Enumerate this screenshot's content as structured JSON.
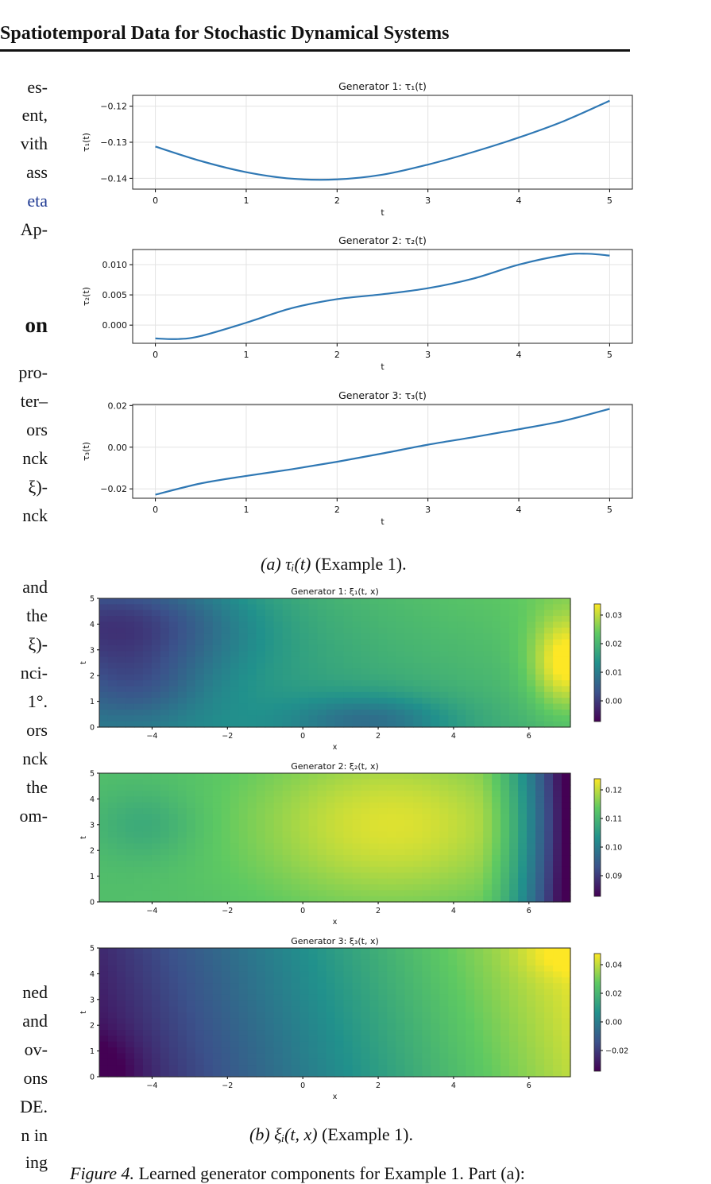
{
  "header": {
    "title": "Spatiotemporal Data for Stochastic Dynamical Systems"
  },
  "left_column": {
    "fragments": [
      "es-",
      "ent,",
      "vith",
      "ass",
      "eta",
      "Ap-",
      "on",
      "pro-",
      "ter–",
      "ors",
      "nck",
      "ξ)-",
      "nck",
      "and",
      "the",
      "ξ)-",
      "nci-",
      "1°.",
      "ors",
      "nck",
      "the",
      "om-",
      "ned",
      "and",
      "ov-",
      "ons",
      "DE.",
      "n in",
      "ing"
    ]
  },
  "tau_plots": [
    {
      "title": "Generator 1: τ₁(t)",
      "ylabel": "τ₁(t)",
      "xlabel": "t",
      "xticks": [
        "0",
        "1",
        "2",
        "3",
        "4",
        "5"
      ],
      "yticks": [
        "−0.12",
        "−0.13",
        "−0.14"
      ],
      "ytick_values": [
        -0.12,
        -0.13,
        -0.14
      ],
      "ylim": [
        -0.143,
        -0.117
      ],
      "x": [
        0,
        0.5,
        1,
        1.5,
        2,
        2.5,
        3,
        3.5,
        4,
        4.5,
        5
      ],
      "y": [
        -0.1312,
        -0.1352,
        -0.1383,
        -0.1401,
        -0.1403,
        -0.139,
        -0.1362,
        -0.1327,
        -0.1287,
        -0.1241,
        -0.1185
      ]
    },
    {
      "title": "Generator 2: τ₂(t)",
      "ylabel": "τ₂(t)",
      "xlabel": "t",
      "xticks": [
        "0",
        "1",
        "2",
        "3",
        "4",
        "5"
      ],
      "yticks": [
        "0.010",
        "0.005",
        "0.000"
      ],
      "ytick_values": [
        0.01,
        0.005,
        0.0
      ],
      "ylim": [
        -0.003,
        0.0125
      ],
      "x": [
        0,
        0.25,
        0.5,
        1,
        1.5,
        2,
        2.5,
        3,
        3.5,
        4,
        4.5,
        4.75,
        5
      ],
      "y": [
        -0.0022,
        -0.0023,
        -0.0018,
        0.0004,
        0.0028,
        0.0043,
        0.0051,
        0.0061,
        0.0077,
        0.01,
        0.0116,
        0.0118,
        0.0115
      ]
    },
    {
      "title": "Generator 3: τ₃(t)",
      "ylabel": "τ₃(t)",
      "xlabel": "t",
      "xticks": [
        "0",
        "1",
        "2",
        "3",
        "4",
        "5"
      ],
      "yticks": [
        "0.02",
        "0.00",
        "−0.02"
      ],
      "ytick_values": [
        0.02,
        0.0,
        -0.02
      ],
      "ylim": [
        -0.0245,
        0.0205
      ],
      "x": [
        0,
        0.5,
        1,
        1.5,
        2,
        2.5,
        3,
        3.5,
        4,
        4.5,
        5
      ],
      "y": [
        -0.0228,
        -0.0174,
        -0.0138,
        -0.0106,
        -0.007,
        -0.003,
        0.0012,
        0.0048,
        0.0086,
        0.0127,
        0.0184
      ]
    }
  ],
  "caption_a": {
    "label": "(a) τᵢ(t)",
    "rest": " (Example 1)."
  },
  "xi_plots": [
    {
      "title": "Generator 1: ξ₁(t, x)",
      "xlabel": "x",
      "ylabel": "t",
      "xticks": [
        "−4",
        "−2",
        "0",
        "2",
        "4",
        "6"
      ],
      "yticks": [
        "5",
        "4",
        "3",
        "2",
        "1",
        "0"
      ],
      "cbar_ticks": [
        "0.03",
        "0.02",
        "0.01",
        "0.00"
      ]
    },
    {
      "title": "Generator 2: ξ₂(t, x)",
      "xlabel": "x",
      "ylabel": "t",
      "xticks": [
        "−4",
        "−2",
        "0",
        "2",
        "4",
        "6"
      ],
      "yticks": [
        "5",
        "4",
        "3",
        "2",
        "1",
        "0"
      ],
      "cbar_ticks": [
        "0.12",
        "0.11",
        "0.10",
        "0.09"
      ]
    },
    {
      "title": "Generator 3: ξ₃(t, x)",
      "xlabel": "x",
      "ylabel": "t",
      "xticks": [
        "−4",
        "−2",
        "0",
        "2",
        "4",
        "6"
      ],
      "yticks": [
        "5",
        "4",
        "3",
        "2",
        "1",
        "0"
      ],
      "cbar_ticks": [
        "0.04",
        "0.02",
        "0.00",
        "−0.02"
      ]
    }
  ],
  "caption_b": {
    "label": "(b) ξᵢ(t, x)",
    "rest": " (Example 1)."
  },
  "figure_caption": {
    "label": "Figure 4.",
    "rest": " Learned generator components for Example 1. Part (a):"
  },
  "colors": {
    "line": "#2f78b4",
    "grid": "#e3e3e3",
    "viridis": [
      "#440154",
      "#3b528b",
      "#21918c",
      "#5ec962",
      "#fde725"
    ]
  }
}
